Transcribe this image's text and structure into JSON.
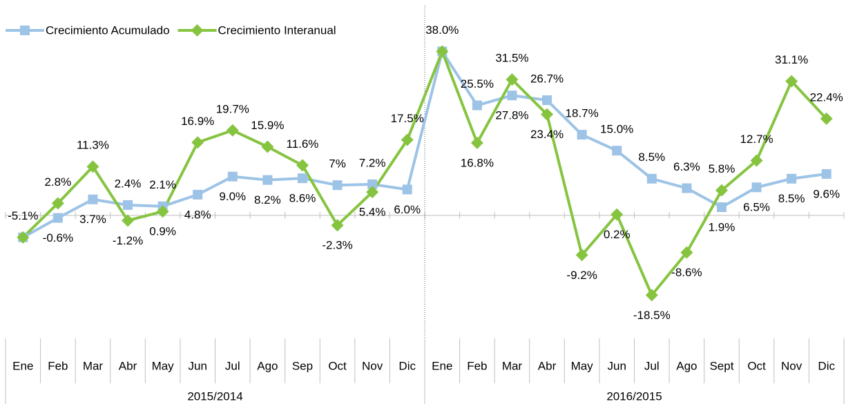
{
  "chart_data": {
    "type": "line",
    "categories": [
      "Ene",
      "Feb",
      "Mar",
      "Abr",
      "May",
      "Jun",
      "Jul",
      "Ago",
      "Sep",
      "Oct",
      "Nov",
      "Dic",
      "Ene",
      "Feb",
      "Mar",
      "Abr",
      "May",
      "Jun",
      "Jul",
      "Ago",
      "Sept",
      "Oct",
      "Nov",
      "Dic"
    ],
    "groups": [
      "2015/2014",
      "2016/2015"
    ],
    "series": [
      {
        "name": "Crecimiento Acumulado",
        "color": "#9dc3e6",
        "marker": "square",
        "values": [
          -5.1,
          -0.6,
          3.7,
          2.4,
          2.1,
          4.8,
          9.0,
          8.2,
          8.6,
          7,
          7.2,
          6.0,
          38.0,
          25.5,
          27.8,
          26.7,
          18.7,
          15.0,
          8.5,
          6.3,
          1.9,
          6.5,
          8.5,
          9.6
        ],
        "value_labels": [
          "-5.1%",
          "-0.6%",
          "3.7%",
          "2.4%",
          "2.1%",
          "4.8%",
          "9.0%",
          "8.2%",
          "8.6%",
          "7%",
          "7.2%",
          "6.0%",
          "38.0%",
          "25.5%",
          "27.8%",
          "26.7%",
          "18.7%",
          "15.0%",
          "8.5%",
          "6.3%",
          "1.9%",
          "6.5%",
          "8.5%",
          "9.6%"
        ]
      },
      {
        "name": "Crecimiento Interanual",
        "color": "#86c440",
        "marker": "diamond",
        "values": [
          -5.1,
          2.8,
          11.3,
          -1.2,
          0.9,
          16.9,
          19.7,
          15.9,
          11.6,
          -2.3,
          5.4,
          17.5,
          38.0,
          16.8,
          31.5,
          23.4,
          -9.2,
          0.2,
          -18.5,
          -8.6,
          5.8,
          12.7,
          31.1,
          22.4
        ],
        "value_labels": [
          null,
          "2.8%",
          "11.3%",
          "-1.2%",
          "0.9%",
          "16.9%",
          "19.7%",
          "15.9%",
          "11.6%",
          "-2.3%",
          "5.4%",
          "17.5%",
          null,
          "16.8%",
          "31.5%",
          "23.4%",
          "-9.2%",
          "0.2%",
          "-18.5%",
          "-8.6%",
          "5.8%",
          "12.7%",
          "31.1%",
          "22.4%"
        ]
      }
    ],
    "ylim": [
      -25,
      40
    ],
    "legend": "top-left"
  }
}
